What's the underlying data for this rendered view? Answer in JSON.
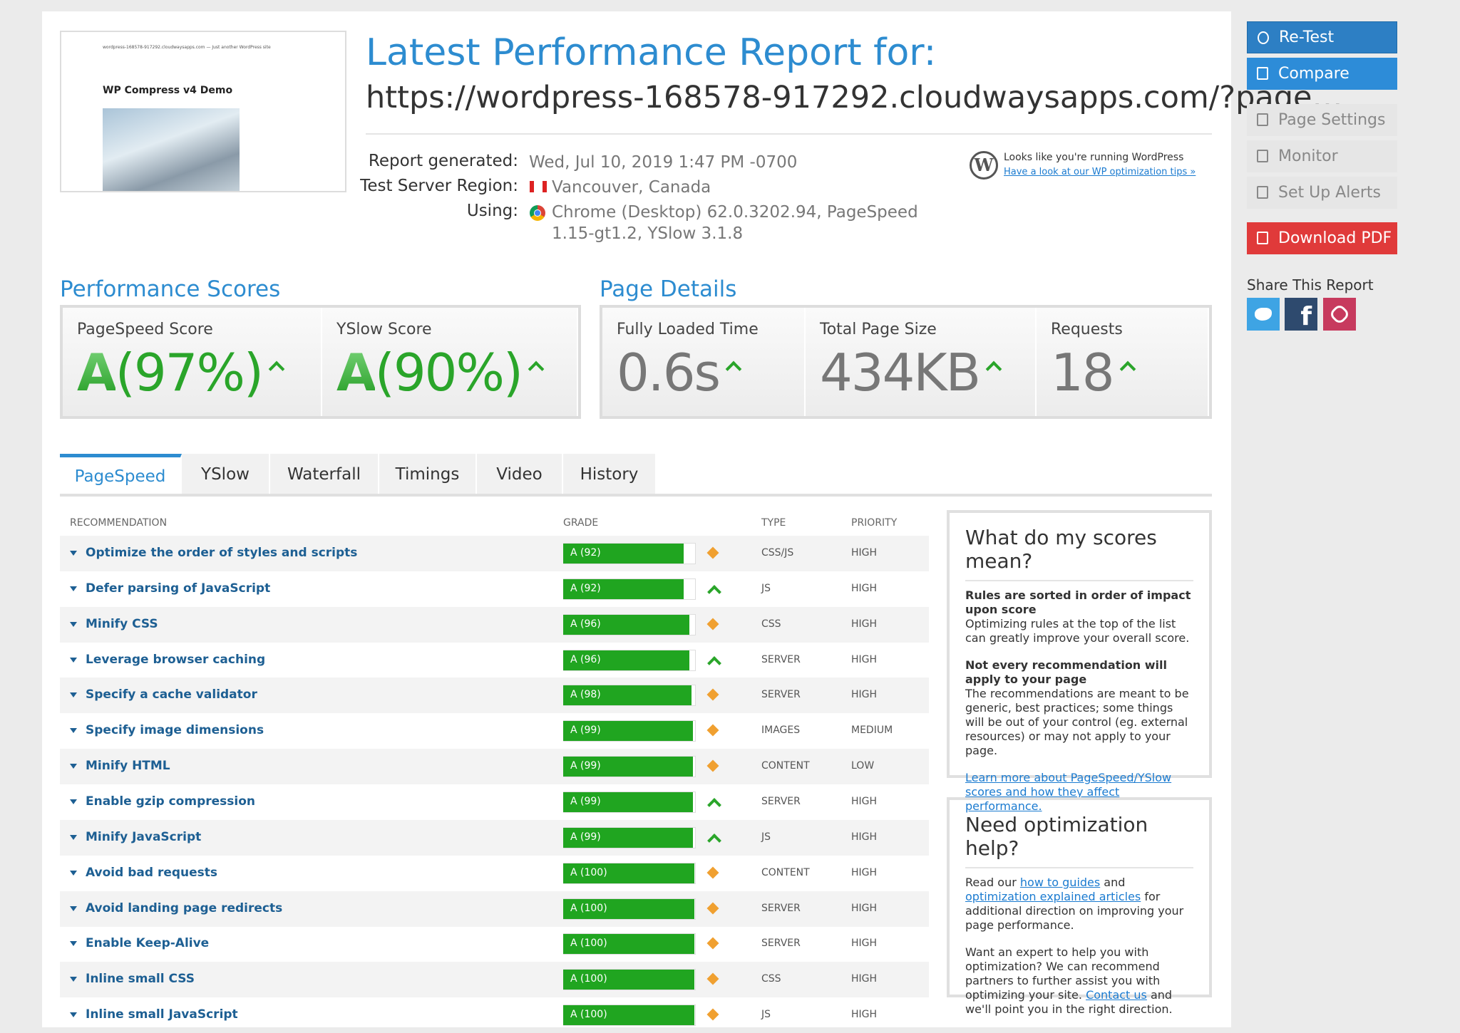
{
  "header": {
    "title": "Latest Performance Report for:",
    "url": "https://wordpress-168578-917292.cloudwaysapps.com/?page…"
  },
  "thumbnail": {
    "site_line": "wordpress-168578-917292.cloudwaysapps.com — Just another WordPress site",
    "heading": "WP Compress v4 Demo"
  },
  "report_info": [
    {
      "label": "Report generated:",
      "value": "Wed, Jul 10, 2019 1:47 PM -0700"
    },
    {
      "label": "Test Server Region:",
      "value": "Vancouver, Canada"
    },
    {
      "label": "Using:",
      "value": "Chrome (Desktop) 62.0.3202.94, PageSpeed 1.15-gt1.2, YSlow 3.1.8"
    }
  ],
  "wordpress_note": {
    "text": "Looks like you're running WordPress",
    "link": "Have a look at our WP optimization tips »"
  },
  "performance_scores": {
    "title": "Performance Scores",
    "items": [
      {
        "label": "PageSpeed Score",
        "grade": "A",
        "value": "(97%)"
      },
      {
        "label": "YSlow Score",
        "grade": "A",
        "value": "(90%)"
      }
    ]
  },
  "page_details": {
    "title": "Page Details",
    "items": [
      {
        "label": "Fully Loaded Time",
        "value": "0.6s"
      },
      {
        "label": "Total Page Size",
        "value": "434KB"
      },
      {
        "label": "Requests",
        "value": "18"
      }
    ]
  },
  "tabs": [
    "PageSpeed",
    "YSlow",
    "Waterfall",
    "Timings",
    "Video",
    "History"
  ],
  "active_tab": 0,
  "table": {
    "columns": [
      "RECOMMENDATION",
      "GRADE",
      "TYPE",
      "PRIORITY"
    ],
    "rows": [
      {
        "name": "Optimize the order of styles and scripts",
        "grade": {
          "value": 92,
          "label": "A (92)"
        },
        "icon": "diamond",
        "type": "CSS/JS",
        "priority": "HIGH"
      },
      {
        "name": "Defer parsing of JavaScript",
        "grade": {
          "value": 92,
          "label": "A (92)"
        },
        "icon": "up",
        "type": "JS",
        "priority": "HIGH"
      },
      {
        "name": "Minify CSS",
        "grade": {
          "value": 96,
          "label": "A (96)"
        },
        "icon": "diamond",
        "type": "CSS",
        "priority": "HIGH"
      },
      {
        "name": "Leverage browser caching",
        "grade": {
          "value": 96,
          "label": "A (96)"
        },
        "icon": "up",
        "type": "SERVER",
        "priority": "HIGH"
      },
      {
        "name": "Specify a cache validator",
        "grade": {
          "value": 98,
          "label": "A (98)"
        },
        "icon": "diamond",
        "type": "SERVER",
        "priority": "HIGH"
      },
      {
        "name": "Specify image dimensions",
        "grade": {
          "value": 99,
          "label": "A (99)"
        },
        "icon": "diamond",
        "type": "IMAGES",
        "priority": "MEDIUM"
      },
      {
        "name": "Minify HTML",
        "grade": {
          "value": 99,
          "label": "A (99)"
        },
        "icon": "diamond",
        "type": "CONTENT",
        "priority": "LOW"
      },
      {
        "name": "Enable gzip compression",
        "grade": {
          "value": 99,
          "label": "A (99)"
        },
        "icon": "up",
        "type": "SERVER",
        "priority": "HIGH"
      },
      {
        "name": "Minify JavaScript",
        "grade": {
          "value": 99,
          "label": "A (99)"
        },
        "icon": "up",
        "type": "JS",
        "priority": "HIGH"
      },
      {
        "name": "Avoid bad requests",
        "grade": {
          "value": 100,
          "label": "A (100)"
        },
        "icon": "diamond",
        "type": "CONTENT",
        "priority": "HIGH"
      },
      {
        "name": "Avoid landing page redirects",
        "grade": {
          "value": 100,
          "label": "A (100)"
        },
        "icon": "diamond",
        "type": "SERVER",
        "priority": "HIGH"
      },
      {
        "name": "Enable Keep-Alive",
        "grade": {
          "value": 100,
          "label": "A (100)"
        },
        "icon": "diamond",
        "type": "SERVER",
        "priority": "HIGH"
      },
      {
        "name": "Inline small CSS",
        "grade": {
          "value": 100,
          "label": "A (100)"
        },
        "icon": "diamond",
        "type": "CSS",
        "priority": "HIGH"
      },
      {
        "name": "Inline small JavaScript",
        "grade": {
          "value": 100,
          "label": "A (100)"
        },
        "icon": "diamond",
        "type": "JS",
        "priority": "HIGH"
      }
    ]
  },
  "scores_info": {
    "title": "What do my scores mean?",
    "sections": [
      {
        "heading": "Rules are sorted in order of impact upon score",
        "text": "Optimizing rules at the top of the list can greatly improve your overall score."
      },
      {
        "heading": "Not every recommendation will apply to your page",
        "text": "The recommendations are meant to be generic, best practices; some things will be out of your control (eg. external resources) or may not apply to your page."
      }
    ],
    "link": "Learn more about PageSpeed/YSlow scores and how they affect performance."
  },
  "help": {
    "title": "Need optimization help?",
    "paragraphs": [
      [
        {
          "text": "Read our "
        },
        {
          "text": "how to guides",
          "link": true
        },
        {
          "text": " and "
        },
        {
          "text": "optimization explained articles",
          "link": true
        },
        {
          "text": " for additional direction on improving your page performance."
        }
      ],
      [
        {
          "text": "Want an expert to help you with optimization? We can recommend partners to further assist you with optimizing your site. "
        },
        {
          "text": "Contact us",
          "link": true
        },
        {
          "text": " and we'll point you in the right direction."
        }
      ]
    ]
  },
  "sidebar": {
    "buttons": [
      "Re-Test",
      "Compare",
      "Page Settings",
      "Monitor",
      "Set Up Alerts",
      "Download PDF"
    ],
    "share_title": "Share This Report"
  }
}
